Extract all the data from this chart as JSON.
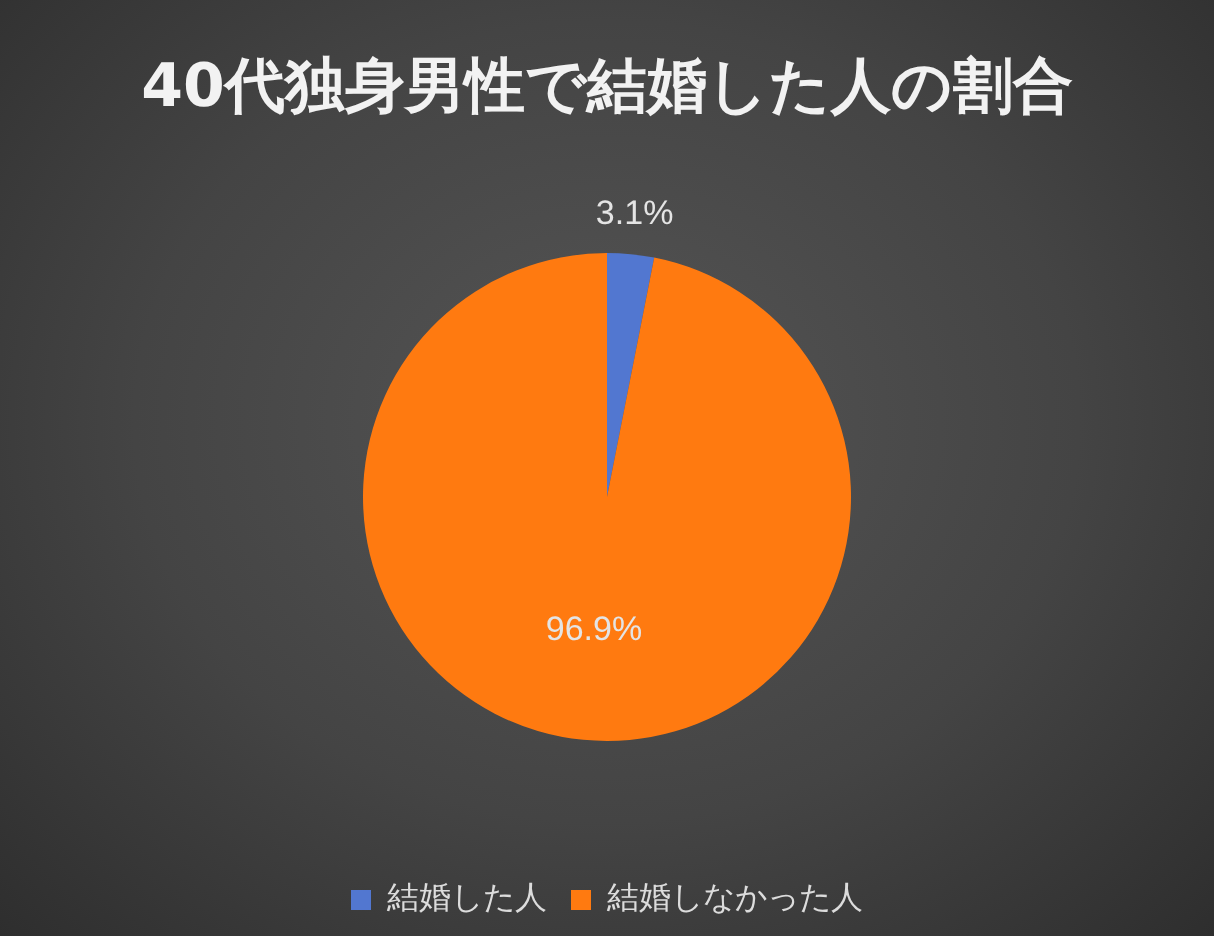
{
  "chart_data": {
    "type": "pie",
    "title": "40代独身男性で結婚した人の割合",
    "categories": [
      "結婚した人",
      "結婚しなかった人"
    ],
    "values": [
      3.1,
      96.9
    ],
    "colors": [
      "#5277d0",
      "#ff7a10"
    ],
    "value_labels": [
      "3.1%",
      "96.9%"
    ],
    "legend": "bottom"
  }
}
